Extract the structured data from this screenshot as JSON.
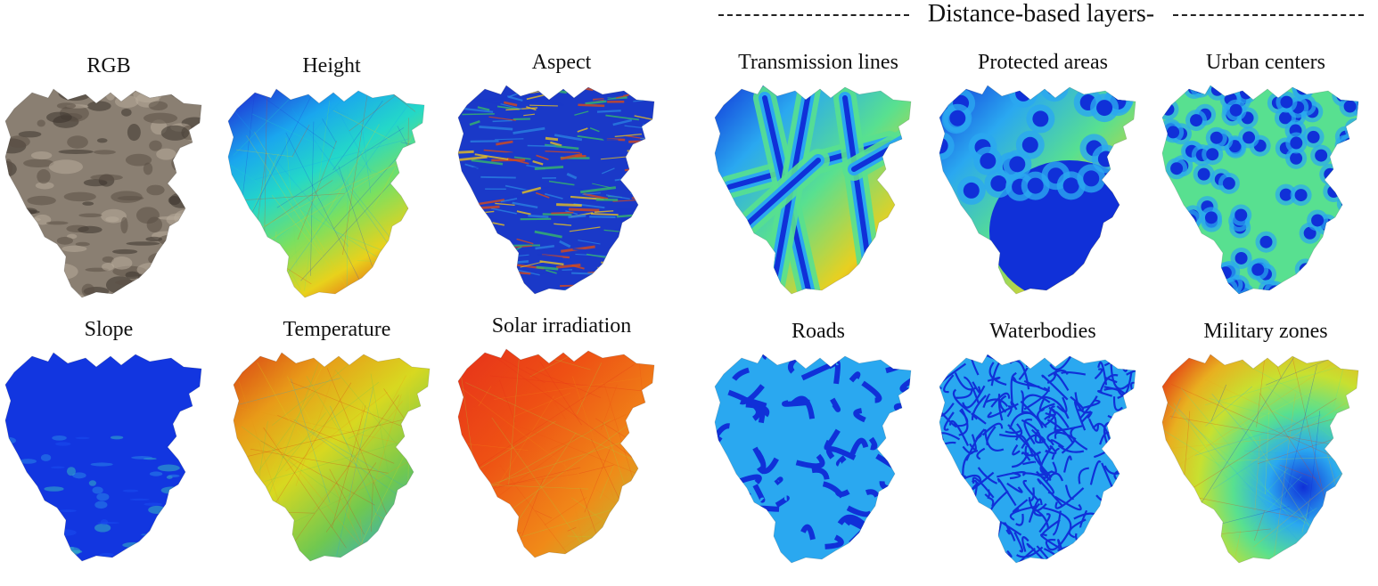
{
  "header": {
    "title": "Distance-based layers-"
  },
  "panels": [
    {
      "id": "rgb",
      "title": "RGB",
      "style": "rgb",
      "colors": [
        "#8a7f72",
        "#5b5146",
        "#b8ab9a",
        "#3c342d"
      ]
    },
    {
      "id": "height",
      "title": "Height",
      "style": "grad",
      "colors": [
        "#1e3fd8",
        "#1aa6ee",
        "#24d8c8",
        "#7ae060",
        "#e8d21c",
        "#e33b14"
      ]
    },
    {
      "id": "aspect",
      "title": "Aspect",
      "style": "noise",
      "colors": [
        "#1a39c8",
        "#36b86a",
        "#e8c020",
        "#d84a1a",
        "#2a80e0"
      ]
    },
    {
      "id": "transmission",
      "title": "Transmission lines",
      "style": "lines",
      "colors": [
        "#1030d8",
        "#2aa8f0",
        "#58e090",
        "#e8d020",
        "#e43a14"
      ]
    },
    {
      "id": "protected",
      "title": "Protected areas",
      "style": "blobs",
      "colors": [
        "#1030d8",
        "#2aa8f0",
        "#58e090",
        "#e8d020",
        "#e43a14"
      ]
    },
    {
      "id": "urban",
      "title": "Urban centers",
      "style": "dots",
      "colors": [
        "#1030d8",
        "#2aa8f0",
        "#58e090",
        "#e8d020"
      ]
    },
    {
      "id": "slope",
      "title": "Slope",
      "style": "flat",
      "colors": [
        "#1236e0",
        "#1a4ef0",
        "#2a8ce8",
        "#38c0c0"
      ]
    },
    {
      "id": "temperature",
      "title": "Temperature",
      "style": "temp",
      "colors": [
        "#d83a14",
        "#e89a18",
        "#d8d820",
        "#70c850",
        "#28a8d8"
      ]
    },
    {
      "id": "solar",
      "title": "Solar irradiation",
      "style": "solar",
      "colors": [
        "#e6301a",
        "#ee5014",
        "#f08a18",
        "#a0d840"
      ]
    },
    {
      "id": "roads",
      "title": "Roads",
      "style": "net",
      "colors": [
        "#1030d8",
        "#2aa8f0",
        "#58e090",
        "#e8d020",
        "#e43a14"
      ]
    },
    {
      "id": "waterbodies",
      "title": "Waterbodies",
      "style": "fine",
      "colors": [
        "#1030d8",
        "#2aa8f0",
        "#58e090"
      ]
    },
    {
      "id": "military",
      "title": "Military zones",
      "style": "radial",
      "colors": [
        "#1030d8",
        "#2aa8f0",
        "#58e090",
        "#c8e030",
        "#e8b020",
        "#e43a14"
      ]
    }
  ]
}
